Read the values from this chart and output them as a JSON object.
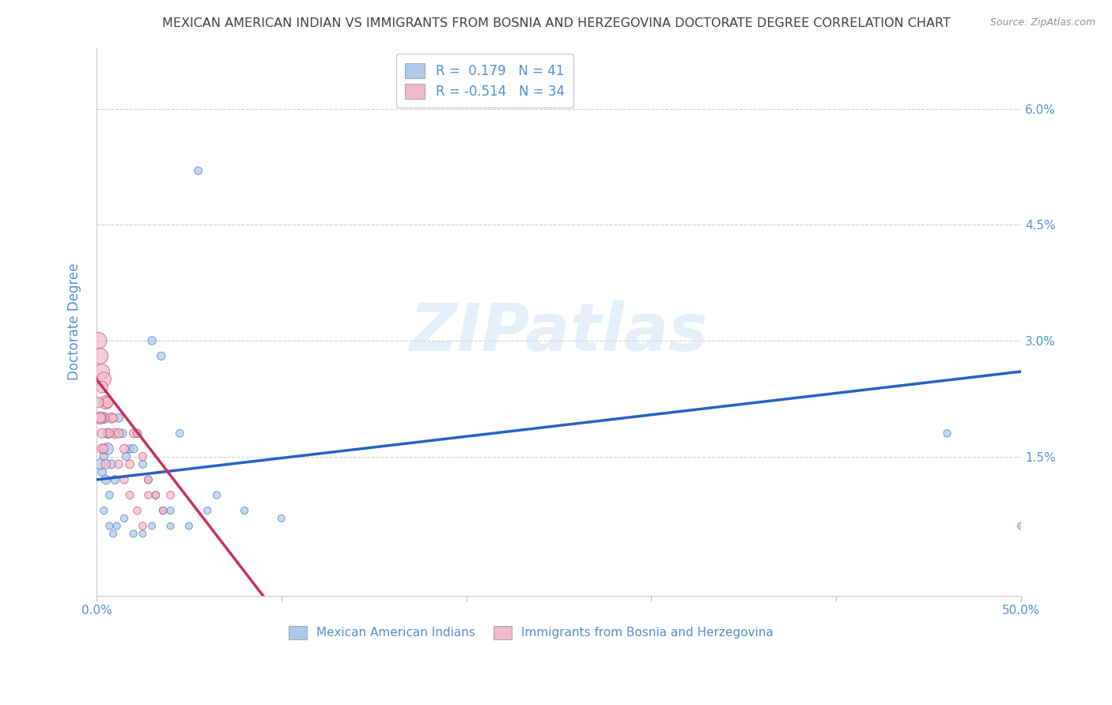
{
  "title": "MEXICAN AMERICAN INDIAN VS IMMIGRANTS FROM BOSNIA AND HERZEGOVINA DOCTORATE DEGREE CORRELATION CHART",
  "source": "Source: ZipAtlas.com",
  "ylabel": "Doctorate Degree",
  "xlim": [
    0.0,
    0.5
  ],
  "ylim": [
    -0.003,
    0.068
  ],
  "xtick_labels": [
    "0.0%",
    "",
    "",
    "",
    "",
    "50.0%"
  ],
  "xtick_vals": [
    0.0,
    0.1,
    0.2,
    0.3,
    0.4,
    0.5
  ],
  "ytick_labels": [
    "1.5%",
    "3.0%",
    "4.5%",
    "6.0%"
  ],
  "ytick_vals": [
    0.015,
    0.03,
    0.045,
    0.06
  ],
  "legend_entry1": "R =  0.179   N = 41",
  "legend_entry2": "R = -0.514   N = 34",
  "legend_label1": "Mexican American Indians",
  "legend_label2": "Immigrants from Bosnia and Herzegovina",
  "blue_color": "#adc8e8",
  "pink_color": "#f0b8c8",
  "blue_line_color": "#2860c0",
  "pink_line_color": "#c83060",
  "title_color": "#404040",
  "source_color": "#909090",
  "axis_color": "#5090d0",
  "blue_dots_x": [
    0.003,
    0.004,
    0.005,
    0.006,
    0.007,
    0.002,
    0.004,
    0.006,
    0.008,
    0.01,
    0.012,
    0.014,
    0.016,
    0.018,
    0.02,
    0.022,
    0.025,
    0.028,
    0.032,
    0.036,
    0.04,
    0.05,
    0.06,
    0.03,
    0.035,
    0.045,
    0.055,
    0.065,
    0.08,
    0.1,
    0.004,
    0.007,
    0.009,
    0.011,
    0.015,
    0.02,
    0.025,
    0.03,
    0.04,
    0.46,
    0.5
  ],
  "blue_dots_y": [
    0.013,
    0.015,
    0.012,
    0.018,
    0.01,
    0.014,
    0.02,
    0.016,
    0.014,
    0.012,
    0.02,
    0.018,
    0.015,
    0.016,
    0.016,
    0.018,
    0.014,
    0.012,
    0.01,
    0.008,
    0.008,
    0.006,
    0.008,
    0.03,
    0.028,
    0.018,
    0.052,
    0.01,
    0.008,
    0.007,
    0.008,
    0.006,
    0.005,
    0.006,
    0.007,
    0.005,
    0.005,
    0.006,
    0.006,
    0.018,
    0.006
  ],
  "blue_dots_size": [
    60,
    55,
    70,
    80,
    50,
    90,
    100,
    110,
    65,
    60,
    60,
    58,
    55,
    55,
    55,
    52,
    50,
    48,
    46,
    44,
    44,
    42,
    42,
    58,
    55,
    50,
    50,
    46,
    44,
    42,
    46,
    44,
    42,
    42,
    44,
    42,
    40,
    40,
    40,
    45,
    40
  ],
  "pink_dots_x": [
    0.001,
    0.002,
    0.003,
    0.004,
    0.005,
    0.002,
    0.003,
    0.006,
    0.008,
    0.01,
    0.012,
    0.015,
    0.018,
    0.02,
    0.022,
    0.025,
    0.028,
    0.032,
    0.036,
    0.04,
    0.003,
    0.005,
    0.007,
    0.009,
    0.012,
    0.015,
    0.018,
    0.022,
    0.025,
    0.028,
    0.001,
    0.002,
    0.003,
    0.004
  ],
  "pink_dots_y": [
    0.03,
    0.028,
    0.026,
    0.025,
    0.022,
    0.02,
    0.024,
    0.022,
    0.02,
    0.018,
    0.018,
    0.016,
    0.014,
    0.018,
    0.018,
    0.015,
    0.012,
    0.01,
    0.008,
    0.01,
    0.016,
    0.014,
    0.018,
    0.02,
    0.014,
    0.012,
    0.01,
    0.008,
    0.006,
    0.01,
    0.022,
    0.02,
    0.018,
    0.016
  ],
  "pink_dots_size": [
    230,
    210,
    190,
    170,
    150,
    130,
    115,
    100,
    88,
    78,
    72,
    66,
    62,
    60,
    58,
    55,
    52,
    50,
    48,
    50,
    80,
    72,
    66,
    62,
    58,
    55,
    52,
    50,
    48,
    46,
    90,
    85,
    75,
    68
  ],
  "blue_trendline_x": [
    0.0,
    0.5
  ],
  "blue_trendline_y": [
    0.012,
    0.026
  ],
  "pink_trendline_x": [
    0.0,
    0.09
  ],
  "pink_trendline_y": [
    0.025,
    -0.003
  ]
}
